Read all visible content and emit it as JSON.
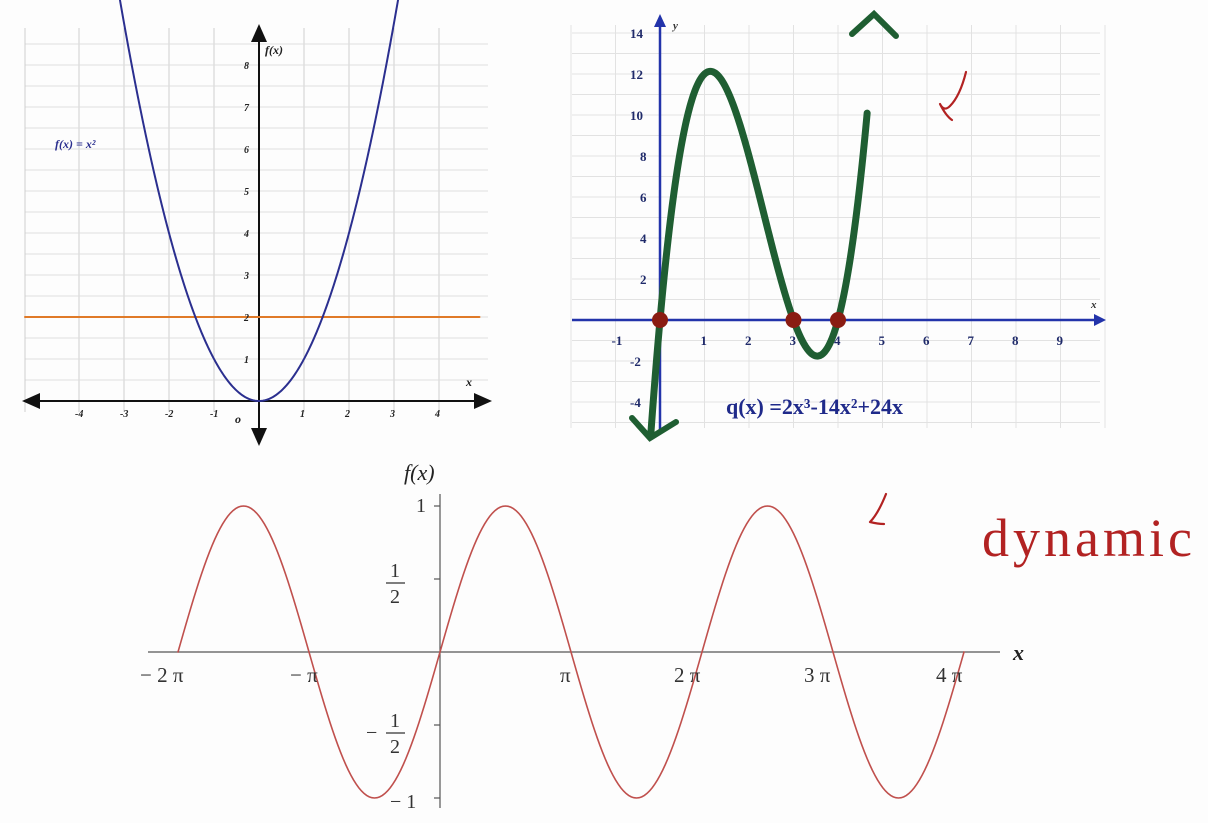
{
  "chart_data": [
    {
      "type": "line",
      "id": "parabola",
      "title": "",
      "xlabel": "x",
      "ylabel": "f(x)",
      "xlim": [
        -4.5,
        4.5
      ],
      "ylim": [
        -0.75,
        8.5
      ],
      "x_ticks": [
        -4,
        -3,
        -2,
        -1,
        1,
        2,
        3,
        4
      ],
      "x_tick_labels": [
        "-4",
        "-3",
        "-2",
        "-1",
        "1",
        "2",
        "3",
        "4"
      ],
      "origin_label": "o",
      "y_ticks": [
        1,
        2,
        3,
        4,
        5,
        6,
        7,
        8
      ],
      "y_tick_labels": [
        "1",
        "2",
        "3",
        "4",
        "5",
        "6",
        "7",
        "8"
      ],
      "grid": true,
      "series": [
        {
          "name": "f(x) = x²",
          "function": "x^2",
          "x_range": [
            -3.15,
            3.15
          ],
          "color": "#2b2f8f"
        },
        {
          "name": "",
          "function": "2",
          "x_range": [
            -5.2,
            4.9
          ],
          "color": "#e07a28"
        }
      ],
      "annotations": [
        {
          "text": "f(x) = x²",
          "x": -4.3,
          "y": 6.0
        }
      ]
    },
    {
      "type": "line",
      "id": "cubic",
      "title": "q(x) =2x³-14x²+24x",
      "xlabel": "x",
      "ylabel": "y",
      "xlim": [
        -2,
        10
      ],
      "ylim": [
        -5.5,
        15
      ],
      "x_ticks": [
        -1,
        1,
        2,
        3,
        4,
        5,
        6,
        7,
        8,
        9
      ],
      "x_tick_labels": [
        "-1",
        "1",
        "2",
        "3",
        "4",
        "5",
        "6",
        "7",
        "8",
        "9"
      ],
      "y_ticks": [
        -4,
        -2,
        2,
        4,
        6,
        8,
        10,
        12,
        14
      ],
      "y_tick_labels": [
        "-4",
        "-2",
        "2",
        "4",
        "6",
        "8",
        "10",
        "12",
        "14"
      ],
      "grid": true,
      "series": [
        {
          "name": "q(x)",
          "function": "2x^3-14x^2+24x",
          "x_range": [
            -0.2,
            4.6
          ],
          "color": "#1f5e32"
        }
      ],
      "points": [
        {
          "x": 0,
          "y": 0
        },
        {
          "x": 3,
          "y": 0
        },
        {
          "x": 4,
          "y": 0
        }
      ],
      "point_color": "#8a1c12"
    },
    {
      "type": "line",
      "id": "sine",
      "title": "",
      "xlabel": "x",
      "ylabel": "f(x)",
      "xlim": [
        -2.15,
        4.2
      ],
      "ylim": [
        -1.15,
        1.2
      ],
      "x_unit": "π",
      "x_ticks": [
        -2,
        -1,
        1,
        2,
        3,
        4
      ],
      "x_tick_labels": [
        "− 2  π",
        "− π",
        "π",
        "2  π",
        "3  π",
        "4  π"
      ],
      "y_ticks": [
        1,
        0.5,
        -0.5,
        -1
      ],
      "y_tick_labels": [
        "1",
        "1/2",
        "− 1/2",
        "− 1"
      ],
      "grid": false,
      "series": [
        {
          "name": "",
          "function": "sin(x)",
          "x_range": [
            -2,
            4
          ],
          "color": "#c0504d"
        }
      ]
    }
  ],
  "handwritten": {
    "word": "dynamic",
    "color": "#b22222"
  }
}
